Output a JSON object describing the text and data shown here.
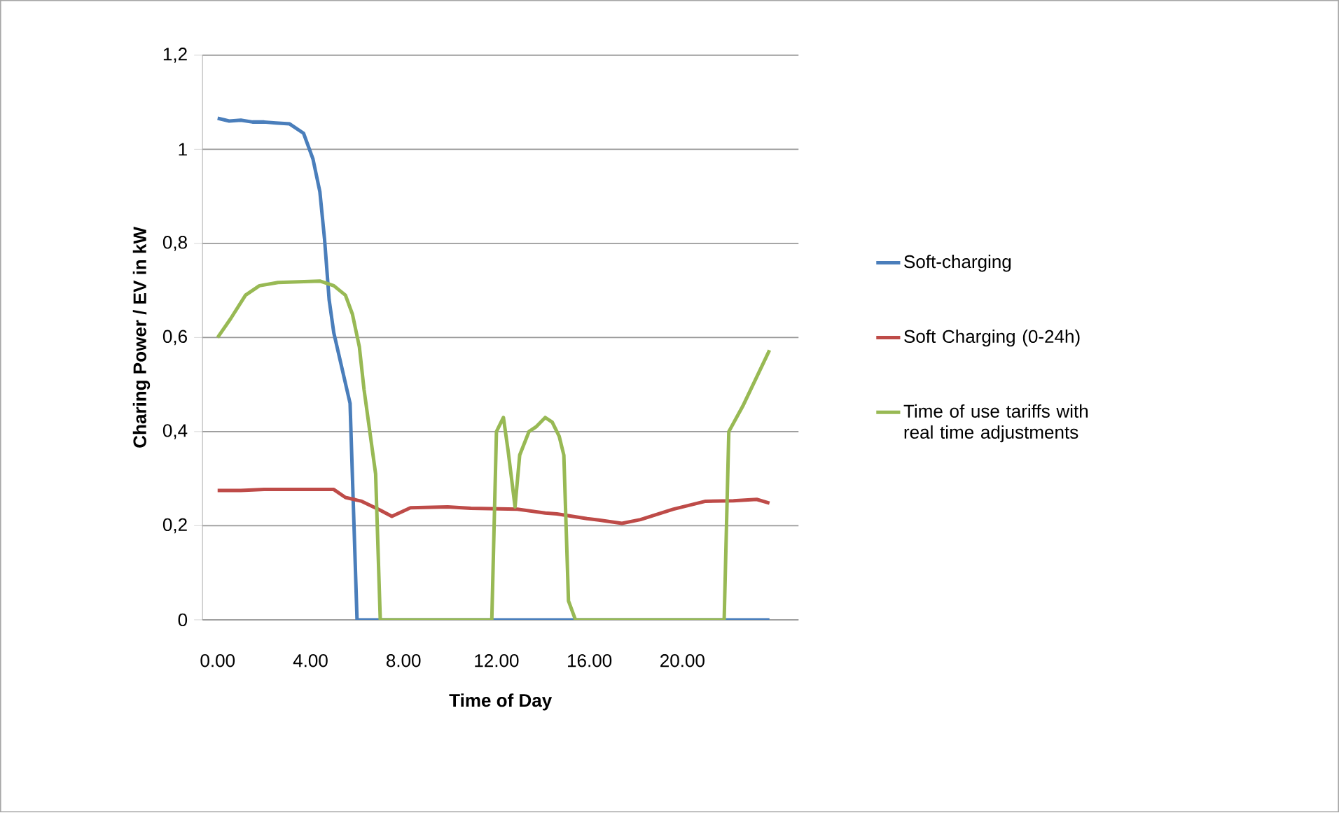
{
  "chart_data": {
    "type": "line",
    "xlabel": "Time of Day",
    "ylabel": "Charing Power / EV in kW",
    "xlim": [
      -0.65,
      25.0
    ],
    "ylim": [
      0,
      1.2
    ],
    "xticks": [
      {
        "value": 0,
        "label": "0.00"
      },
      {
        "value": 4,
        "label": "4.00"
      },
      {
        "value": 8,
        "label": "8.00"
      },
      {
        "value": 12,
        "label": "12.00"
      },
      {
        "value": 16,
        "label": "16.00"
      },
      {
        "value": 20,
        "label": "20.00"
      }
    ],
    "yticks": [
      0,
      {
        "value": 0.2,
        "label": "0,2"
      },
      {
        "value": 0.4,
        "label": "0,4"
      },
      {
        "value": 0.6,
        "label": "0,6"
      },
      {
        "value": 0.8,
        "label": "0,8"
      },
      1,
      {
        "value": 1.2,
        "label": "1,2"
      }
    ],
    "grid": "y",
    "legend": "right",
    "marker": "none",
    "line_style": "solid",
    "series": [
      {
        "name": "Soft-charging",
        "color": "#4a7ebb",
        "x": [
          0,
          0.5,
          1.0,
          1.5,
          2.0,
          2.5,
          3.1,
          3.7,
          4.1,
          4.4,
          4.6,
          4.8,
          5.0,
          5.7,
          6.0,
          10,
          15,
          20,
          23.75
        ],
        "values": [
          1.066,
          1.06,
          1.062,
          1.058,
          1.058,
          1.056,
          1.054,
          1.034,
          0.98,
          0.91,
          0.81,
          0.68,
          0.61,
          0.46,
          0,
          0,
          0,
          0,
          0
        ]
      },
      {
        "name": "Soft Charging (0-24h)",
        "color": "#be4b48",
        "x": [
          0,
          1,
          2,
          3,
          4,
          5.0,
          5.5,
          6.2,
          7.0,
          7.5,
          8.3,
          9.9,
          10.9,
          12.9,
          14.1,
          14.6,
          15.9,
          16.4,
          17.4,
          18.2,
          19.6,
          21.0,
          22.2,
          23.2,
          23.75
        ],
        "values": [
          0.275,
          0.275,
          0.277,
          0.277,
          0.277,
          0.277,
          0.26,
          0.252,
          0.233,
          0.22,
          0.238,
          0.24,
          0.237,
          0.235,
          0.227,
          0.225,
          0.215,
          0.212,
          0.205,
          0.213,
          0.235,
          0.252,
          0.253,
          0.256,
          0.248
        ]
      },
      {
        "name": "Time of use tariffs with real time adjustments",
        "color": "#98b954",
        "x": [
          0,
          0.56,
          1.2,
          1.8,
          2.6,
          4.4,
          5.0,
          5.5,
          5.8,
          6.1,
          6.3,
          6.8,
          7.0,
          11.8,
          12.0,
          12.3,
          12.5,
          12.8,
          13.0,
          13.4,
          13.7,
          14.1,
          14.4,
          14.7,
          14.9,
          15.1,
          15.4,
          21.8,
          22.0,
          22.6,
          23.75
        ],
        "values": [
          0.6,
          0.64,
          0.69,
          0.71,
          0.717,
          0.72,
          0.71,
          0.69,
          0.65,
          0.58,
          0.49,
          0.31,
          0,
          0,
          0.4,
          0.43,
          0.36,
          0.24,
          0.35,
          0.4,
          0.41,
          0.43,
          0.42,
          0.39,
          0.35,
          0.04,
          0,
          0,
          0.4,
          0.454,
          0.573
        ]
      }
    ]
  }
}
